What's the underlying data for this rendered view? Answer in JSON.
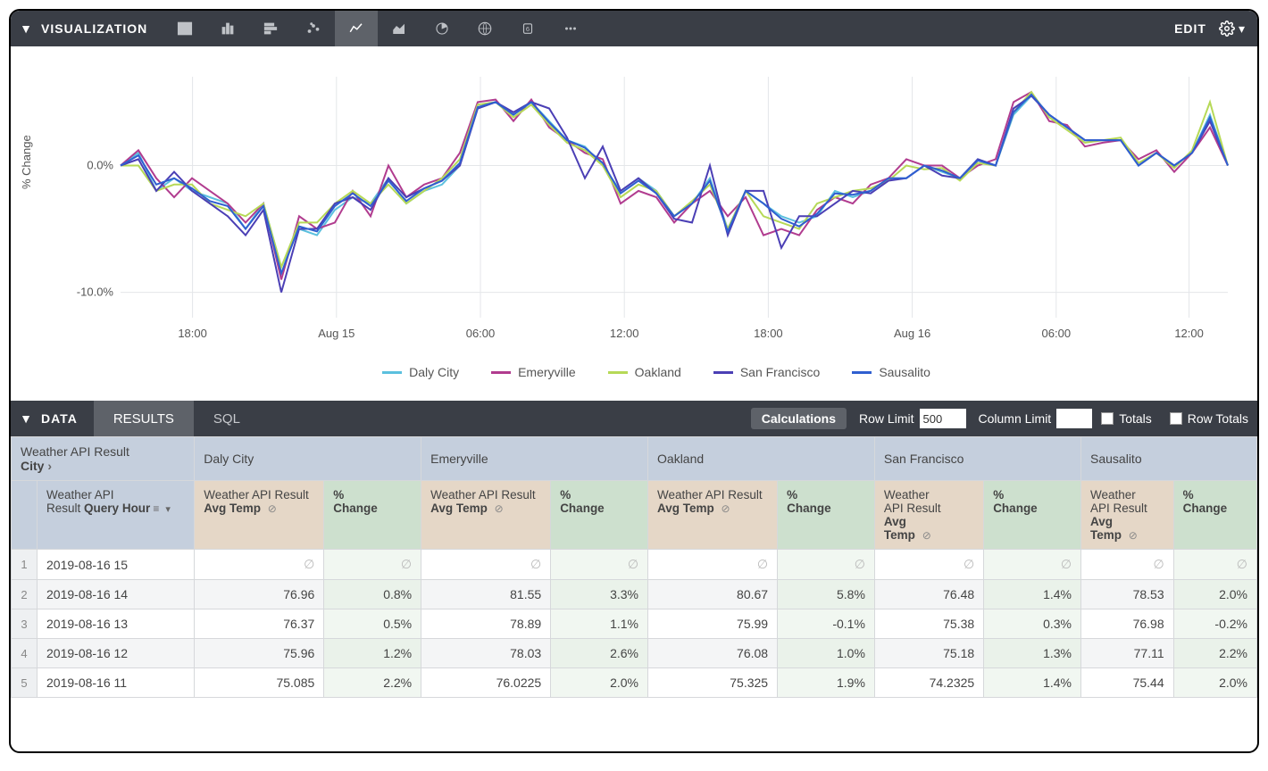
{
  "viz_bar": {
    "title": "VISUALIZATION",
    "edit_label": "EDIT",
    "icons": [
      "table",
      "column",
      "bar",
      "scatter",
      "line",
      "area",
      "pie",
      "map",
      "single",
      "more"
    ],
    "selected_index": 4
  },
  "chart": {
    "y_label": "% Change",
    "y_ticks": [
      {
        "v": 0,
        "label": "0.0%"
      },
      {
        "v": -10,
        "label": "-10.0%"
      }
    ],
    "y_min": -12,
    "y_max": 7,
    "x_ticks": [
      "18:00",
      "Aug 15",
      "06:00",
      "12:00",
      "18:00",
      "Aug 16",
      "06:00",
      "12:00"
    ],
    "x_tick_positions": [
      0.065,
      0.195,
      0.325,
      0.455,
      0.585,
      0.715,
      0.845,
      0.965
    ],
    "grid_color": "#e4e6e9",
    "axis_color": "#c8cacd",
    "background": "#ffffff",
    "line_width": 2,
    "series": [
      {
        "name": "Daly City",
        "color": "#5bc0de",
        "values": [
          0,
          1,
          -2,
          -1,
          -2,
          -2.5,
          -3,
          -5,
          -3,
          -8,
          -5,
          -5.5,
          -3.5,
          -2.5,
          -3,
          -1,
          -3,
          -2,
          -1.5,
          0,
          4.5,
          5,
          4,
          5,
          3.5,
          2,
          1.5,
          0,
          -2,
          -1,
          -2,
          -4,
          -3,
          -1,
          -5,
          -2,
          -3,
          -4,
          -4.5,
          -4,
          -2,
          -2.5,
          -2,
          -1,
          -1,
          0,
          -0.5,
          -1,
          0.5,
          0,
          4,
          5.5,
          4,
          3,
          2,
          2,
          2,
          0,
          1,
          0,
          1,
          4,
          0
        ]
      },
      {
        "name": "Emeryville",
        "color": "#b13c8f",
        "values": [
          0,
          1.2,
          -1,
          -2.5,
          -1,
          -2,
          -3,
          -4.5,
          -3,
          -9,
          -4,
          -5,
          -4.5,
          -2,
          -4,
          0,
          -2.5,
          -1.5,
          -1,
          1,
          5,
          5.2,
          3.5,
          5.2,
          3,
          2,
          1,
          0.5,
          -3,
          -2,
          -2.5,
          -4.5,
          -3,
          -2,
          -4,
          -2.5,
          -5.5,
          -5,
          -5.5,
          -3.5,
          -2.5,
          -3,
          -1.5,
          -1,
          0.5,
          0,
          0,
          -1,
          0,
          0.5,
          5,
          5.8,
          3.5,
          3.2,
          1.5,
          1.8,
          2,
          0.5,
          1.2,
          -0.5,
          1,
          3,
          0
        ]
      },
      {
        "name": "Oakland",
        "color": "#b6d957",
        "values": [
          0,
          0,
          -2,
          -1.5,
          -1.5,
          -3,
          -3.5,
          -4,
          -3,
          -8,
          -4.5,
          -4.5,
          -3,
          -2,
          -3,
          -1.5,
          -3,
          -2,
          -1,
          0.5,
          4.8,
          5,
          3.8,
          4.8,
          3.2,
          1.8,
          1.2,
          0,
          -2.5,
          -1.5,
          -2,
          -4,
          -2.8,
          -1.5,
          -5,
          -2,
          -4,
          -4.5,
          -5,
          -3,
          -2.5,
          -2,
          -1.8,
          -1.2,
          0,
          -0.3,
          -0.2,
          -1.2,
          0.2,
          0,
          4.2,
          5.8,
          3.8,
          2.8,
          1.8,
          2,
          2.2,
          0.2,
          1,
          -0.2,
          1.2,
          5,
          0
        ]
      },
      {
        "name": "San Francisco",
        "color": "#4b3fb5",
        "values": [
          0,
          0.5,
          -2,
          -0.5,
          -2,
          -3,
          -4,
          -5.5,
          -3.5,
          -10,
          -5,
          -5,
          -3,
          -2.5,
          -3.5,
          -1,
          -2.5,
          -1.8,
          -1.2,
          0,
          4.5,
          5,
          4.2,
          5,
          4.5,
          2.2,
          -1,
          1.5,
          -2,
          -1,
          -2.2,
          -4.2,
          -4.5,
          0,
          -5.5,
          -2,
          -2,
          -6.5,
          -4,
          -4,
          -3,
          -2,
          -2.2,
          -1.2,
          -1,
          0,
          -0.8,
          -1,
          0.5,
          0,
          4.5,
          5.5,
          4,
          3,
          2,
          2,
          2,
          0,
          1,
          0,
          1,
          3.5,
          0
        ]
      },
      {
        "name": "Sausalito",
        "color": "#2f5fd0",
        "values": [
          0,
          0.8,
          -1.5,
          -1,
          -1.8,
          -2.8,
          -3.2,
          -5,
          -3.2,
          -8.5,
          -4.8,
          -5.2,
          -3.2,
          -2.2,
          -3.2,
          -1.2,
          -2.8,
          -1.8,
          -1.2,
          0.2,
          4.6,
          5,
          4,
          5,
          3.4,
          2,
          1.4,
          0.2,
          -2.2,
          -1.2,
          -2.2,
          -4,
          -3,
          -1.2,
          -5.2,
          -2,
          -3,
          -4.2,
          -4.8,
          -3.8,
          -2.2,
          -2.3,
          -2,
          -1,
          -1,
          0,
          -0.4,
          -1,
          0.4,
          0,
          4.2,
          5.6,
          4,
          3,
          2,
          2,
          2,
          0,
          1,
          0,
          1,
          3.8,
          0
        ]
      }
    ]
  },
  "data_bar": {
    "title": "DATA",
    "tabs": [
      {
        "label": "RESULTS",
        "active": true
      },
      {
        "label": "SQL",
        "active": false
      }
    ],
    "calculations_label": "Calculations",
    "row_limit_label": "Row Limit",
    "row_limit_value": "500",
    "col_limit_label": "Column Limit",
    "col_limit_value": "",
    "totals_label": "Totals",
    "row_totals_label": "Row Totals"
  },
  "table": {
    "pivot_header_line1": "Weather API Result",
    "pivot_header_line2": "City",
    "dim_header_line1": "Weather API",
    "dim_header_line2": "Result",
    "dim_header_label": "Query Hour",
    "measure_header_prefix": "Weather API Result",
    "measure_header_label": "Avg Temp",
    "calc_header_label": "% Change",
    "cities": [
      "Daly City",
      "Emeryville",
      "Oakland",
      "San Francisco",
      "Sausalito"
    ],
    "col_widths": {
      "rownum": 28,
      "dim": 170,
      "measure": 140,
      "calc": 105,
      "measure_sf": 118,
      "measure_sa": 100,
      "calc_last": 90
    },
    "header_bg_dim": "#c5cfdd",
    "header_bg_measure": "#e5d7c7",
    "header_bg_calc": "#cde0ce",
    "rows": [
      {
        "hour": "2019-08-16 15",
        "vals": [
          null,
          null,
          null,
          null,
          null,
          null,
          null,
          null,
          null,
          null
        ]
      },
      {
        "hour": "2019-08-16 14",
        "vals": [
          "76.96",
          "0.8%",
          "81.55",
          "3.3%",
          "80.67",
          "5.8%",
          "76.48",
          "1.4%",
          "78.53",
          "2.0%"
        ]
      },
      {
        "hour": "2019-08-16 13",
        "vals": [
          "76.37",
          "0.5%",
          "78.89",
          "1.1%",
          "75.99",
          "-0.1%",
          "75.38",
          "0.3%",
          "76.98",
          "-0.2%"
        ]
      },
      {
        "hour": "2019-08-16 12",
        "vals": [
          "75.96",
          "1.2%",
          "78.03",
          "2.6%",
          "76.08",
          "1.0%",
          "75.18",
          "1.3%",
          "77.11",
          "2.2%"
        ]
      },
      {
        "hour": "2019-08-16 11",
        "vals": [
          "75.085",
          "2.2%",
          "76.0225",
          "2.0%",
          "75.325",
          "1.9%",
          "74.2325",
          "1.4%",
          "75.44",
          "2.0%"
        ]
      }
    ]
  }
}
